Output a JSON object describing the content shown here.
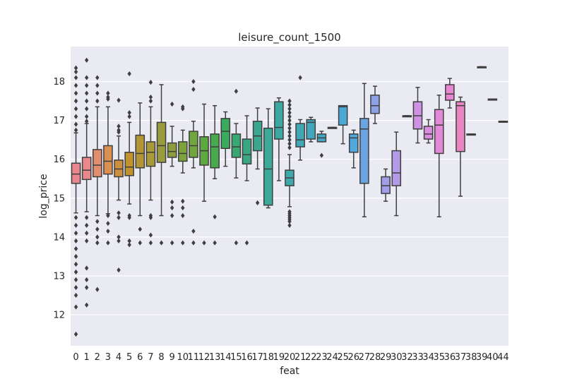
{
  "chart_data": {
    "type": "box",
    "title": "leisure_count_1500",
    "xlabel": "feat",
    "ylabel": "log_price",
    "ylim": [
      11.2,
      18.9
    ],
    "yticks": [
      12,
      13,
      14,
      15,
      16,
      17,
      18
    ],
    "ytick_labels": [
      "12",
      "13",
      "14",
      "15",
      "16",
      "17",
      "18"
    ],
    "grid": true,
    "background": "#EAEAF2",
    "categories": [
      "0",
      "1",
      "2",
      "3",
      "4",
      "5",
      "6",
      "7",
      "8",
      "9",
      "10",
      "11",
      "12",
      "13",
      "14",
      "15",
      "16",
      "17",
      "18",
      "19",
      "20",
      "21",
      "22",
      "23",
      "24",
      "25",
      "26",
      "27",
      "28",
      "29",
      "30",
      "32",
      "33",
      "34",
      "35",
      "36",
      "37",
      "38",
      "39",
      "40",
      "44"
    ],
    "colors": [
      "#e8888e",
      "#e8888a",
      "#e08e6e",
      "#d99050",
      "#cc8f3b",
      "#c2922e",
      "#b39535",
      "#a89939",
      "#9a9b3c",
      "#8c9f3c",
      "#7ea33c",
      "#71a63f",
      "#5ea842",
      "#48aa4f",
      "#3aab5c",
      "#39a873",
      "#3aa783",
      "#3ba78e",
      "#3ba898",
      "#3ca8a1",
      "#3ea8ac",
      "#40a8b5",
      "#42a7bd",
      "#43a8c4",
      "#46aacb",
      "#4aa9d4",
      "#50a8dc",
      "#6aa4e1",
      "#8da2e5",
      "#a29ee7",
      "#b49be7",
      "#c197e6",
      "#cd92e3",
      "#d98ddf",
      "#e289d8",
      "#e886d1",
      "#e887c4",
      "#e88bb5",
      "#e98fa8",
      "#e9929e",
      "#e99496"
    ],
    "boxes": [
      {
        "q1": 15.38,
        "med": 15.62,
        "q3": 15.9,
        "wlo": 14.62,
        "whi": 16.68,
        "out": [
          18.35,
          18.25,
          18.1,
          17.9,
          17.7,
          17.5,
          17.3,
          17.1,
          16.9,
          16.75,
          14.5,
          14.3,
          14.1,
          13.9,
          13.7,
          13.5,
          13.3,
          13.1,
          12.9,
          12.7,
          12.5,
          12.2,
          11.5
        ]
      },
      {
        "q1": 15.48,
        "med": 15.72,
        "q3": 16.05,
        "wlo": 14.65,
        "whi": 16.92,
        "out": [
          18.55,
          18.1,
          17.9,
          17.7,
          17.5,
          17.3,
          17.1,
          16.98,
          14.5,
          14.3,
          14.1,
          13.9,
          13.2,
          12.9,
          12.7,
          12.25
        ]
      },
      {
        "q1": 15.55,
        "med": 15.85,
        "q3": 16.25,
        "wlo": 14.55,
        "whi": 17.35,
        "out": [
          18.1,
          17.9,
          17.7,
          17.5,
          14.4,
          14.2,
          14.0,
          13.85,
          12.65
        ]
      },
      {
        "q1": 15.62,
        "med": 15.95,
        "q3": 16.35,
        "wlo": 14.6,
        "whi": 17.35,
        "out": [
          17.7,
          17.6,
          17.55,
          14.55,
          14.35,
          14.15,
          13.85
        ]
      },
      {
        "q1": 15.55,
        "med": 15.75,
        "q3": 15.98,
        "wlo": 14.95,
        "whi": 16.6,
        "out": [
          17.52,
          16.85,
          16.75,
          16.7,
          14.62,
          14.5,
          14.0,
          13.9,
          13.15
        ]
      },
      {
        "q1": 15.58,
        "med": 15.8,
        "q3": 16.18,
        "wlo": 14.85,
        "whi": 16.95,
        "out": [
          18.2,
          17.2,
          17.1,
          14.55,
          14.5,
          13.9,
          13.8
        ]
      },
      {
        "q1": 15.78,
        "med": 16.15,
        "q3": 16.62,
        "wlo": 14.55,
        "whi": 17.45,
        "out": [
          14.2,
          13.85
        ]
      },
      {
        "q1": 15.82,
        "med": 16.18,
        "q3": 16.45,
        "wlo": 14.95,
        "whi": 17.35,
        "out": [
          17.98,
          17.6,
          17.5,
          14.55,
          14.5,
          14.05,
          13.85
        ]
      },
      {
        "q1": 15.92,
        "med": 16.35,
        "q3": 16.95,
        "wlo": 14.55,
        "whi": 17.92,
        "out": [
          13.85
        ]
      },
      {
        "q1": 16.05,
        "med": 16.2,
        "q3": 16.42,
        "wlo": 15.82,
        "whi": 16.85,
        "out": [
          17.42,
          14.9,
          14.75,
          14.55,
          13.85
        ]
      },
      {
        "q1": 15.95,
        "med": 16.15,
        "q3": 16.45,
        "wlo": 15.65,
        "whi": 16.75,
        "out": [
          17.35,
          17.3,
          14.92,
          14.75,
          14.55,
          13.85
        ]
      },
      {
        "q1": 16.05,
        "med": 16.35,
        "q3": 16.72,
        "wlo": 15.78,
        "whi": 16.98,
        "out": [
          18.0,
          17.8,
          14.15,
          13.85
        ]
      },
      {
        "q1": 15.85,
        "med": 16.22,
        "q3": 16.58,
        "wlo": 14.92,
        "whi": 17.42,
        "out": [
          13.85
        ]
      },
      {
        "q1": 15.78,
        "med": 16.32,
        "q3": 16.65,
        "wlo": 15.5,
        "whi": 17.38,
        "out": [
          14.52,
          13.85
        ]
      },
      {
        "q1": 16.28,
        "med": 16.72,
        "q3": 17.05,
        "wlo": 15.82,
        "whi": 17.22,
        "out": []
      },
      {
        "q1": 16.05,
        "med": 16.32,
        "q3": 16.65,
        "wlo": 15.52,
        "whi": 16.92,
        "out": [
          17.75,
          13.85
        ]
      },
      {
        "q1": 15.88,
        "med": 16.12,
        "q3": 16.52,
        "wlo": 15.45,
        "whi": 17.12,
        "out": [
          13.85
        ]
      },
      {
        "q1": 16.22,
        "med": 16.6,
        "q3": 16.98,
        "wlo": 15.75,
        "whi": 17.32,
        "out": [
          14.88
        ]
      },
      {
        "q1": 14.82,
        "med": 15.75,
        "q3": 16.8,
        "wlo": 14.75,
        "whi": 17.3,
        "out": []
      },
      {
        "q1": 16.52,
        "med": 16.82,
        "q3": 17.48,
        "wlo": 15.45,
        "whi": 17.58,
        "out": []
      },
      {
        "q1": 15.32,
        "med": 15.52,
        "q3": 15.72,
        "wlo": 14.78,
        "whi": 16.12,
        "out": [
          17.5,
          17.4,
          17.3,
          17.2,
          17.1,
          17.0,
          16.9,
          16.8,
          16.7,
          16.6,
          16.5,
          16.4,
          16.3,
          14.65,
          14.6,
          14.55,
          14.5,
          14.45,
          14.4,
          14.3
        ]
      },
      {
        "q1": 16.32,
        "med": 16.5,
        "q3": 16.92,
        "wlo": 15.98,
        "whi": 17.02,
        "out": [
          18.1
        ]
      },
      {
        "q1": 16.52,
        "med": 16.95,
        "q3": 17.02,
        "wlo": 16.45,
        "whi": 17.08,
        "out": []
      },
      {
        "q1": 16.45,
        "med": 16.55,
        "q3": 16.65,
        "wlo": 16.45,
        "whi": 16.72,
        "out": [
          16.1
        ]
      },
      {
        "q1": 16.82,
        "med": 16.82,
        "q3": 16.82,
        "wlo": 16.82,
        "whi": 16.82,
        "out": []
      },
      {
        "q1": 16.88,
        "med": 17.35,
        "q3": 17.38,
        "wlo": 16.4,
        "whi": 17.38,
        "out": []
      },
      {
        "q1": 16.18,
        "med": 16.55,
        "q3": 16.65,
        "wlo": 15.78,
        "whi": 16.75,
        "out": []
      },
      {
        "q1": 15.38,
        "med": 16.78,
        "q3": 17.05,
        "wlo": 14.52,
        "whi": 17.95,
        "out": []
      },
      {
        "q1": 17.18,
        "med": 17.38,
        "q3": 17.65,
        "wlo": 16.92,
        "whi": 17.88,
        "out": []
      },
      {
        "q1": 15.12,
        "med": 15.32,
        "q3": 15.55,
        "wlo": 14.92,
        "whi": 15.75,
        "out": []
      },
      {
        "q1": 15.32,
        "med": 15.65,
        "q3": 16.22,
        "wlo": 14.55,
        "whi": 16.7,
        "out": []
      },
      {
        "q1": 17.12,
        "med": 17.12,
        "q3": 17.12,
        "wlo": 17.12,
        "whi": 17.12,
        "out": []
      },
      {
        "q1": 16.78,
        "med": 17.12,
        "q3": 17.48,
        "wlo": 16.42,
        "whi": 17.85,
        "out": []
      },
      {
        "q1": 16.52,
        "med": 16.65,
        "q3": 16.85,
        "wlo": 16.42,
        "whi": 17.02,
        "out": []
      },
      {
        "q1": 16.15,
        "med": 16.88,
        "q3": 17.28,
        "wlo": 14.52,
        "whi": 17.65,
        "out": []
      },
      {
        "q1": 17.52,
        "med": 17.68,
        "q3": 17.92,
        "wlo": 17.32,
        "whi": 18.08,
        "out": []
      },
      {
        "q1": 16.2,
        "med": 17.38,
        "q3": 17.48,
        "wlo": 15.05,
        "whi": 17.6,
        "out": []
      },
      {
        "q1": 16.65,
        "med": 16.65,
        "q3": 16.65,
        "wlo": 16.65,
        "whi": 16.65,
        "out": []
      },
      {
        "q1": 18.38,
        "med": 18.38,
        "q3": 18.38,
        "wlo": 18.38,
        "whi": 18.38,
        "out": []
      },
      {
        "q1": 17.55,
        "med": 17.55,
        "q3": 17.55,
        "wlo": 17.55,
        "whi": 17.55,
        "out": []
      },
      {
        "q1": 16.98,
        "med": 16.98,
        "q3": 16.98,
        "wlo": 16.98,
        "whi": 16.98,
        "out": []
      }
    ]
  }
}
